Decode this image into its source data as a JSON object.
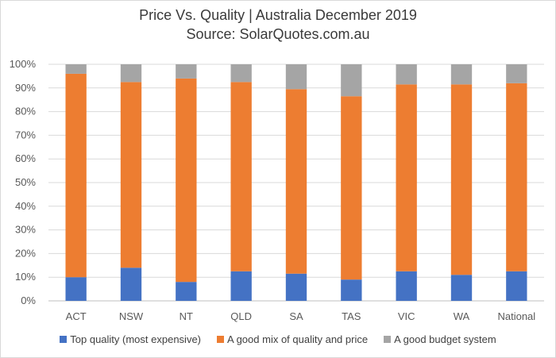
{
  "chart_data": {
    "type": "bar",
    "stacked": true,
    "title": "Price Vs. Quality | Australia December 2019",
    "subtitle": "Source: SolarQuotes.com.au",
    "categories": [
      "ACT",
      "NSW",
      "NT",
      "QLD",
      "SA",
      "TAS",
      "VIC",
      "WA",
      "National"
    ],
    "ylim": [
      0,
      100
    ],
    "yticks": [
      "0%",
      "10%",
      "20%",
      "30%",
      "40%",
      "50%",
      "60%",
      "70%",
      "80%",
      "90%",
      "100%"
    ],
    "grid": true,
    "legend_position": "bottom",
    "series": [
      {
        "name": "Top quality (most expensive)",
        "color": "#4472c4",
        "values": [
          10,
          14,
          8,
          12.5,
          11.5,
          9,
          12.5,
          11,
          12.5
        ]
      },
      {
        "name": "A good mix of quality and price",
        "color": "#ed7d31",
        "values": [
          86,
          78.5,
          86,
          80,
          78,
          77.5,
          79,
          80.5,
          79.5
        ]
      },
      {
        "name": "A good budget system",
        "color": "#a5a5a5",
        "values": [
          4,
          7.5,
          6,
          7.5,
          10.5,
          13.5,
          8.5,
          8.5,
          8
        ]
      }
    ]
  }
}
